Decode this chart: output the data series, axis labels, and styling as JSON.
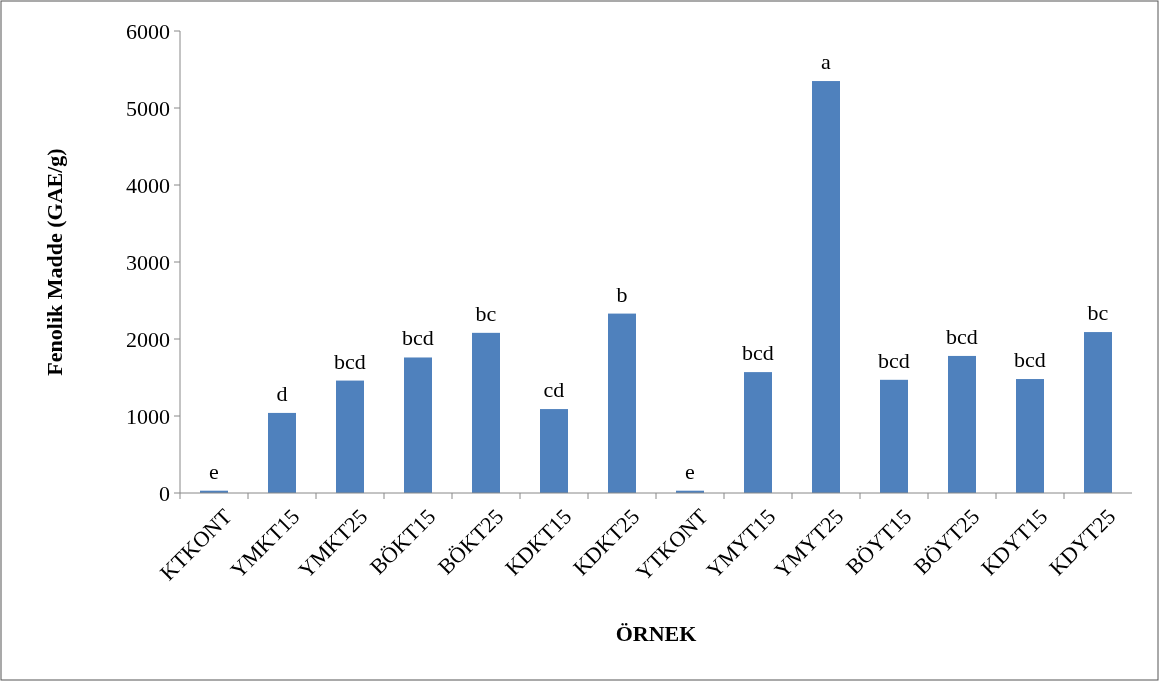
{
  "chart_data": {
    "type": "bar",
    "xlabel": "ÖRNEK",
    "ylabel": "Fenolik Madde (GAE/g)",
    "categories": [
      "KTKONT",
      "YMKT15",
      "YMKT25",
      "BÖKT15",
      "BÖKT25",
      "KDKT15",
      "KDKT25",
      "YTKONT",
      "YMYT15",
      "YMYT25",
      "BÖYT15",
      "BÖYT25",
      "KDYT15",
      "KDYT25"
    ],
    "values": [
      30,
      1040,
      1460,
      1760,
      2080,
      1090,
      2330,
      30,
      1570,
      5350,
      1470,
      1780,
      1480,
      2090
    ],
    "value_labels": [
      "e",
      "d",
      "bcd",
      "bcd",
      "bc",
      "cd",
      "b",
      "e",
      "bcd",
      "a",
      "bcd",
      "bcd",
      "bcd",
      "bc"
    ],
    "color": "#4f81bd",
    "ylim": [
      0,
      6000
    ],
    "yticks": [
      0,
      1000,
      2000,
      3000,
      4000,
      5000,
      6000
    ],
    "grid": false
  }
}
